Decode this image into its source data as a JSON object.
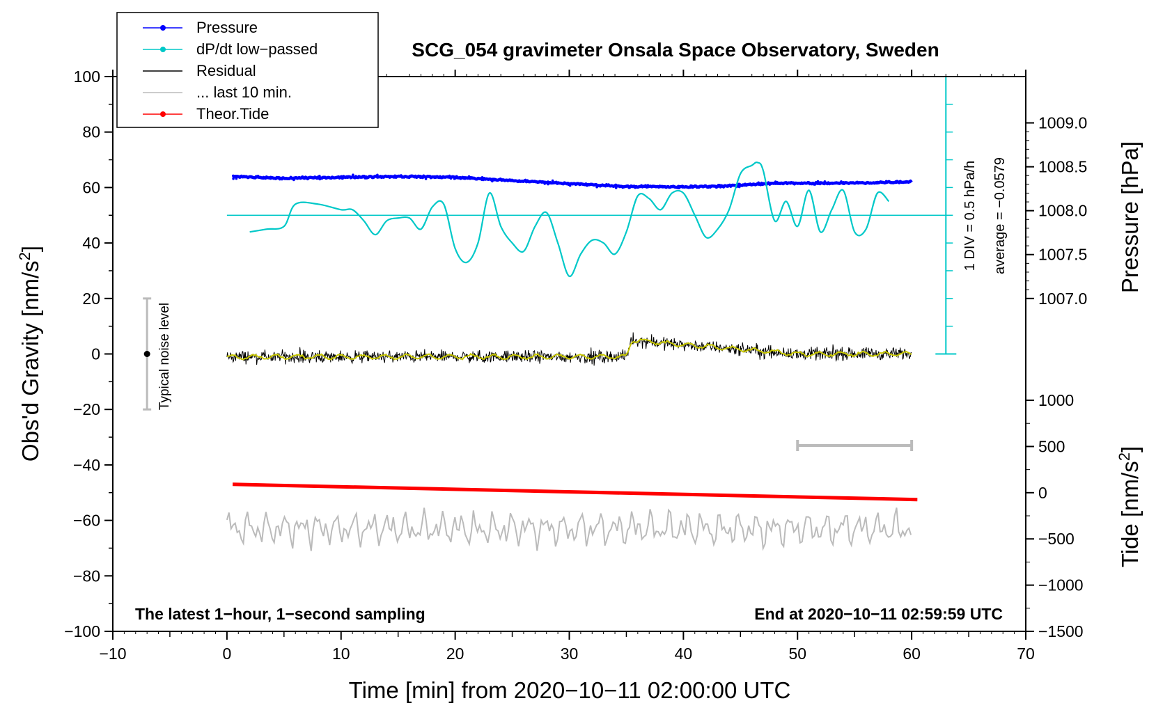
{
  "chart_data": {
    "type": "line",
    "title": "SCG_054 gravimeter Onsala Space Observatory, Sweden",
    "xlabel": "Time [min] from 2020−10−11 02:00:00 UTC",
    "ylabel_left": {
      "main": "Obs'd Gravity [nm/s",
      "sup": "2",
      "tail": "]"
    },
    "ylabel_pressure": "Pressure [hPa]",
    "ylabel_tide": {
      "main": "Tide [nm/s",
      "sup": "2",
      "tail": "]"
    },
    "xlim": [
      -10,
      70
    ],
    "ylim": [
      -100,
      100
    ],
    "x_ticks": [
      -10,
      0,
      10,
      20,
      30,
      40,
      50,
      60,
      70
    ],
    "x_tick_labels": [
      "−10",
      "0",
      "10",
      "20",
      "30",
      "40",
      "50",
      "60",
      "70"
    ],
    "y_ticks": [
      -100,
      -80,
      -60,
      -40,
      -20,
      0,
      20,
      40,
      60,
      80,
      100
    ],
    "y_tick_labels": [
      "−100",
      "−80",
      "−60",
      "−40",
      "−20",
      "0",
      "20",
      "40",
      "60",
      "80",
      "100"
    ],
    "pressure_ticks": [
      1007.0,
      1007.5,
      1008.0,
      1008.5,
      1009.0
    ],
    "pressure_tick_labels": [
      "1007.0",
      "1007.5",
      "1008.0",
      "1008.5",
      "1009.0"
    ],
    "pressure_mapping": {
      "p1": 1007.0,
      "g1": 20,
      "p2": 1009.0,
      "g2": 83.3
    },
    "tide_ticks": [
      -1500,
      -1000,
      -500,
      0,
      500,
      1000
    ],
    "tide_tick_labels": [
      "−1500",
      "−1000",
      "−500",
      "0",
      "500",
      "1000"
    ],
    "tide_mapping": {
      "t1": -1500,
      "g1": -100,
      "t2": 1000,
      "g2": -16.7
    },
    "legend": [
      {
        "label": "Pressure",
        "color": "#0000ff",
        "marker": true
      },
      {
        "label": "dP/dt low−passed",
        "color": "#00c8c8",
        "marker": true
      },
      {
        "label": "Residual",
        "color": "#000000",
        "marker": false
      },
      {
        "label": "... last 10 min.",
        "color": "#bbbbbb",
        "marker": false
      },
      {
        "label": "Theor.Tide",
        "color": "#ff0000",
        "marker": true
      }
    ],
    "legend_position": "top-left",
    "annotations": {
      "div_scale": "1 DIV = 0.5 hPa/h",
      "average": "average = −0.0579",
      "noise_label": "Typical noise level",
      "bottom_left": "The latest 1−hour, 1−second sampling",
      "bottom_right": "End at 2020−10−11 02:59:59 UTC"
    },
    "noise_bar": {
      "x": -7,
      "y_center": 0,
      "y_low": -20,
      "y_high": 20
    },
    "scale_bar_10min": {
      "x_start": 50,
      "x_end": 60,
      "y": -33
    },
    "dpdt_reference": {
      "y": 50,
      "x_start": 0,
      "x_end": 63
    },
    "div_axis": {
      "x": 63,
      "y_bottom": 0,
      "y_top": 100,
      "minor_step": 10
    },
    "series": [
      {
        "name": "Pressure",
        "color": "#0000ff",
        "x": [
          0.5,
          5,
          10,
          15,
          20,
          25,
          30,
          35,
          40,
          44,
          48,
          52,
          56,
          60
        ],
        "y": [
          64,
          63.3,
          63.7,
          64,
          63.7,
          62.5,
          61.4,
          60.4,
          60.2,
          60.6,
          61.6,
          61.5,
          61.7,
          62.1
        ]
      },
      {
        "name": "dP/dt low−passed",
        "color": "#00c8c8",
        "x": [
          2,
          3.5,
          5,
          6,
          8,
          10,
          11,
          12,
          13,
          14,
          15,
          16,
          17,
          18,
          19,
          20,
          21,
          22,
          23,
          24,
          25,
          26,
          27,
          28,
          29,
          30,
          31,
          32,
          33,
          34,
          35,
          36,
          37,
          38,
          39,
          40,
          41,
          42,
          43,
          44,
          45,
          46,
          46.5,
          47,
          48,
          49,
          50,
          51,
          52,
          53,
          54,
          55,
          56,
          57,
          58
        ],
        "y": [
          44,
          45,
          46,
          54,
          54,
          52,
          52,
          48,
          43,
          48,
          49,
          49,
          45,
          53,
          54,
          38,
          33,
          40,
          58,
          46,
          40,
          37,
          46,
          51,
          40,
          28,
          36,
          41,
          40,
          36,
          44,
          57,
          56,
          52,
          58,
          58,
          50,
          42,
          45,
          52,
          65,
          68,
          69,
          66,
          48,
          55,
          46,
          59,
          44,
          52,
          59,
          44,
          45,
          58,
          55
        ]
      },
      {
        "name": "Residual",
        "color": "#000000",
        "x": [
          0,
          5,
          10,
          15,
          20,
          25,
          30,
          35,
          35.5,
          38,
          41,
          44,
          47,
          50,
          55,
          60
        ],
        "y": [
          -1,
          -1,
          -1,
          -1,
          -1,
          -1,
          -1,
          -1,
          5,
          4,
          3,
          2,
          1,
          0,
          0,
          0
        ]
      },
      {
        "name": "Residual smoothed",
        "color": "#c8c800",
        "x": [
          0,
          5,
          10,
          15,
          20,
          25,
          30,
          35,
          35.5,
          38,
          41,
          44,
          47,
          50,
          55,
          60
        ],
        "y": [
          -1,
          -1,
          -1,
          -1,
          -1,
          -1,
          -1,
          -1,
          5,
          4,
          3,
          2,
          1,
          0,
          0,
          0
        ]
      },
      {
        "name": "... last 10 min.",
        "color": "#bbbbbb",
        "x": [
          0,
          10,
          20,
          30,
          40,
          50,
          60
        ],
        "y": [
          -63,
          -63,
          -63,
          -63,
          -63,
          -63,
          -63
        ]
      },
      {
        "name": "Theor.Tide",
        "color": "#ff0000",
        "x": [
          0.5,
          60.5
        ],
        "y": [
          -47,
          -52.5
        ]
      }
    ]
  }
}
